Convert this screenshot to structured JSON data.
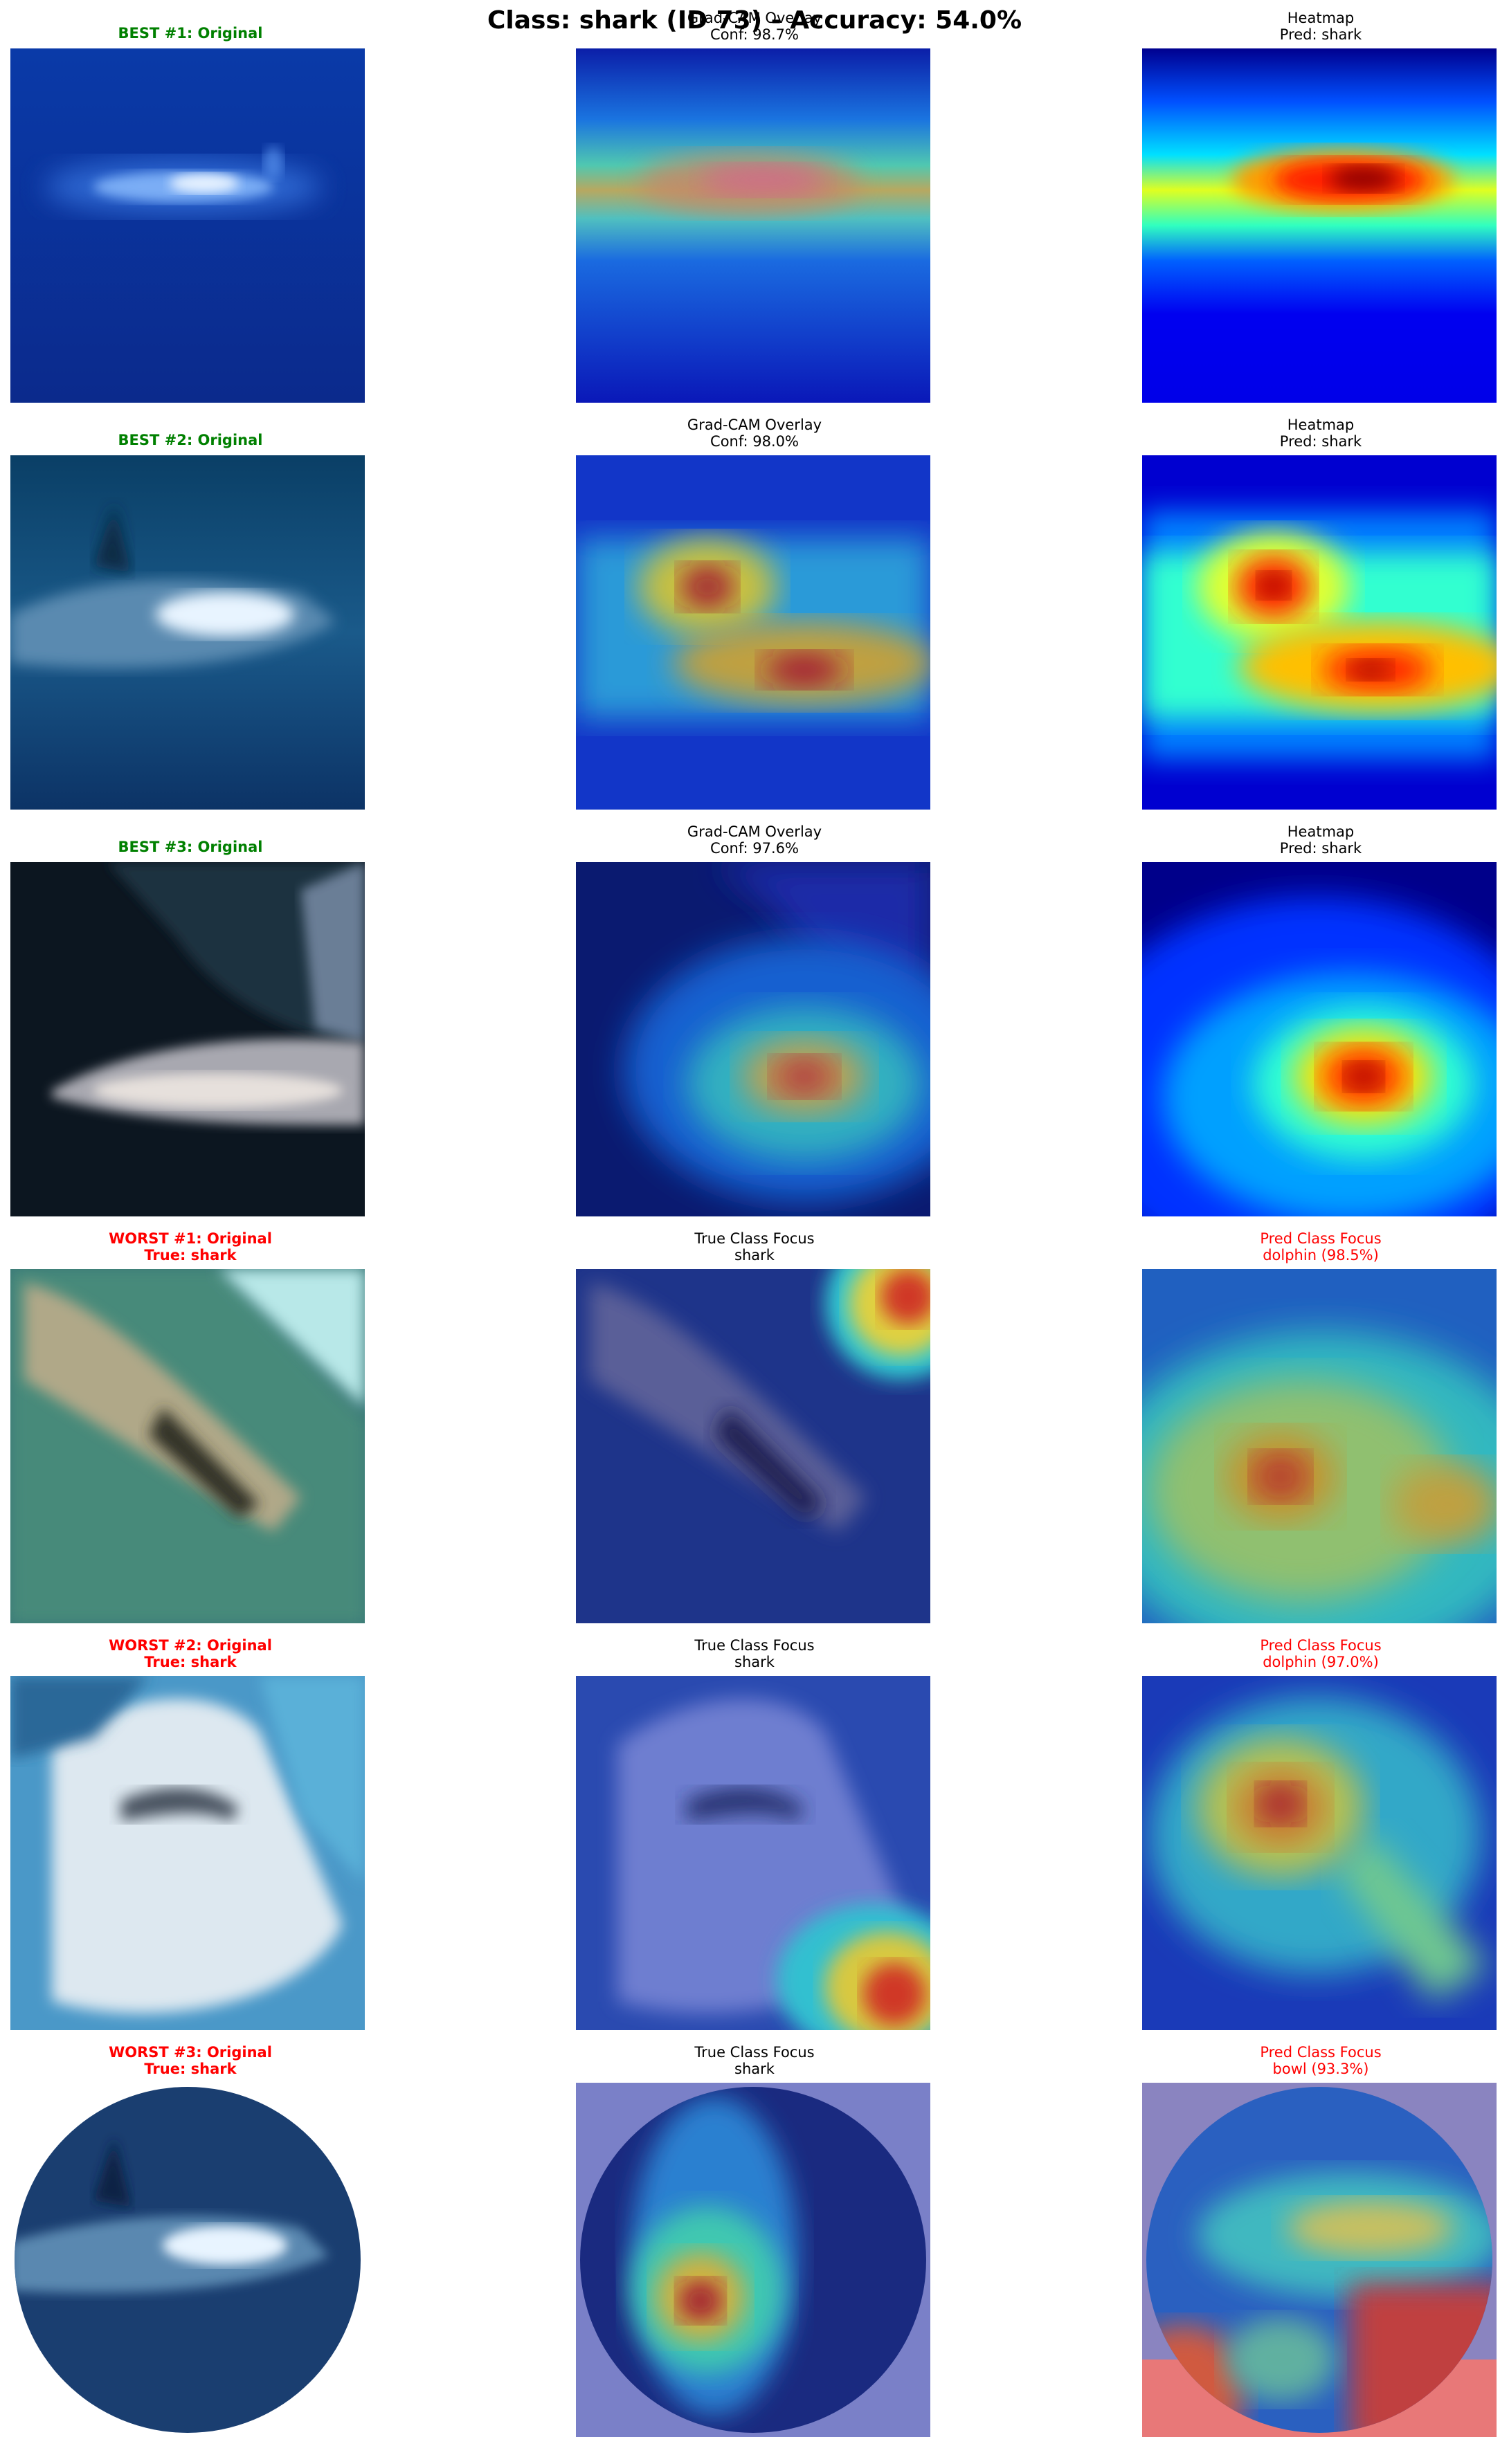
{
  "suptitle": "Class: shark (ID 73) - Accuracy: 54.0%",
  "rows": [
    {
      "c0": "BEST #1: Original",
      "c1": "Grad-CAM Overlay\nConf: 98.7%",
      "c2": "Heatmap\nPred: shark"
    },
    {
      "c0": "BEST #2: Original",
      "c1": "Grad-CAM Overlay\nConf: 98.0%",
      "c2": "Heatmap\nPred: shark"
    },
    {
      "c0": "BEST #3: Original",
      "c1": "Grad-CAM Overlay\nConf: 97.6%",
      "c2": "Heatmap\nPred: shark"
    },
    {
      "c0": "WORST #1: Original\nTrue: shark",
      "c1": "True Class Focus\nshark",
      "c2": "Pred Class Focus\ndolphin (98.5%)"
    },
    {
      "c0": "WORST #2: Original\nTrue: shark",
      "c1": "True Class Focus\nshark",
      "c2": "Pred Class Focus\ndolphin (97.0%)"
    },
    {
      "c0": "WORST #3: Original\nTrue: shark",
      "c1": "True Class Focus\nshark",
      "c2": "Pred Class Focus\nbowl (93.3%)"
    }
  ],
  "colors": {
    "best_title": "#008000",
    "worst_title": "#ff0000",
    "pred_focus_title": "#ff0000"
  },
  "colormap": "jet"
}
